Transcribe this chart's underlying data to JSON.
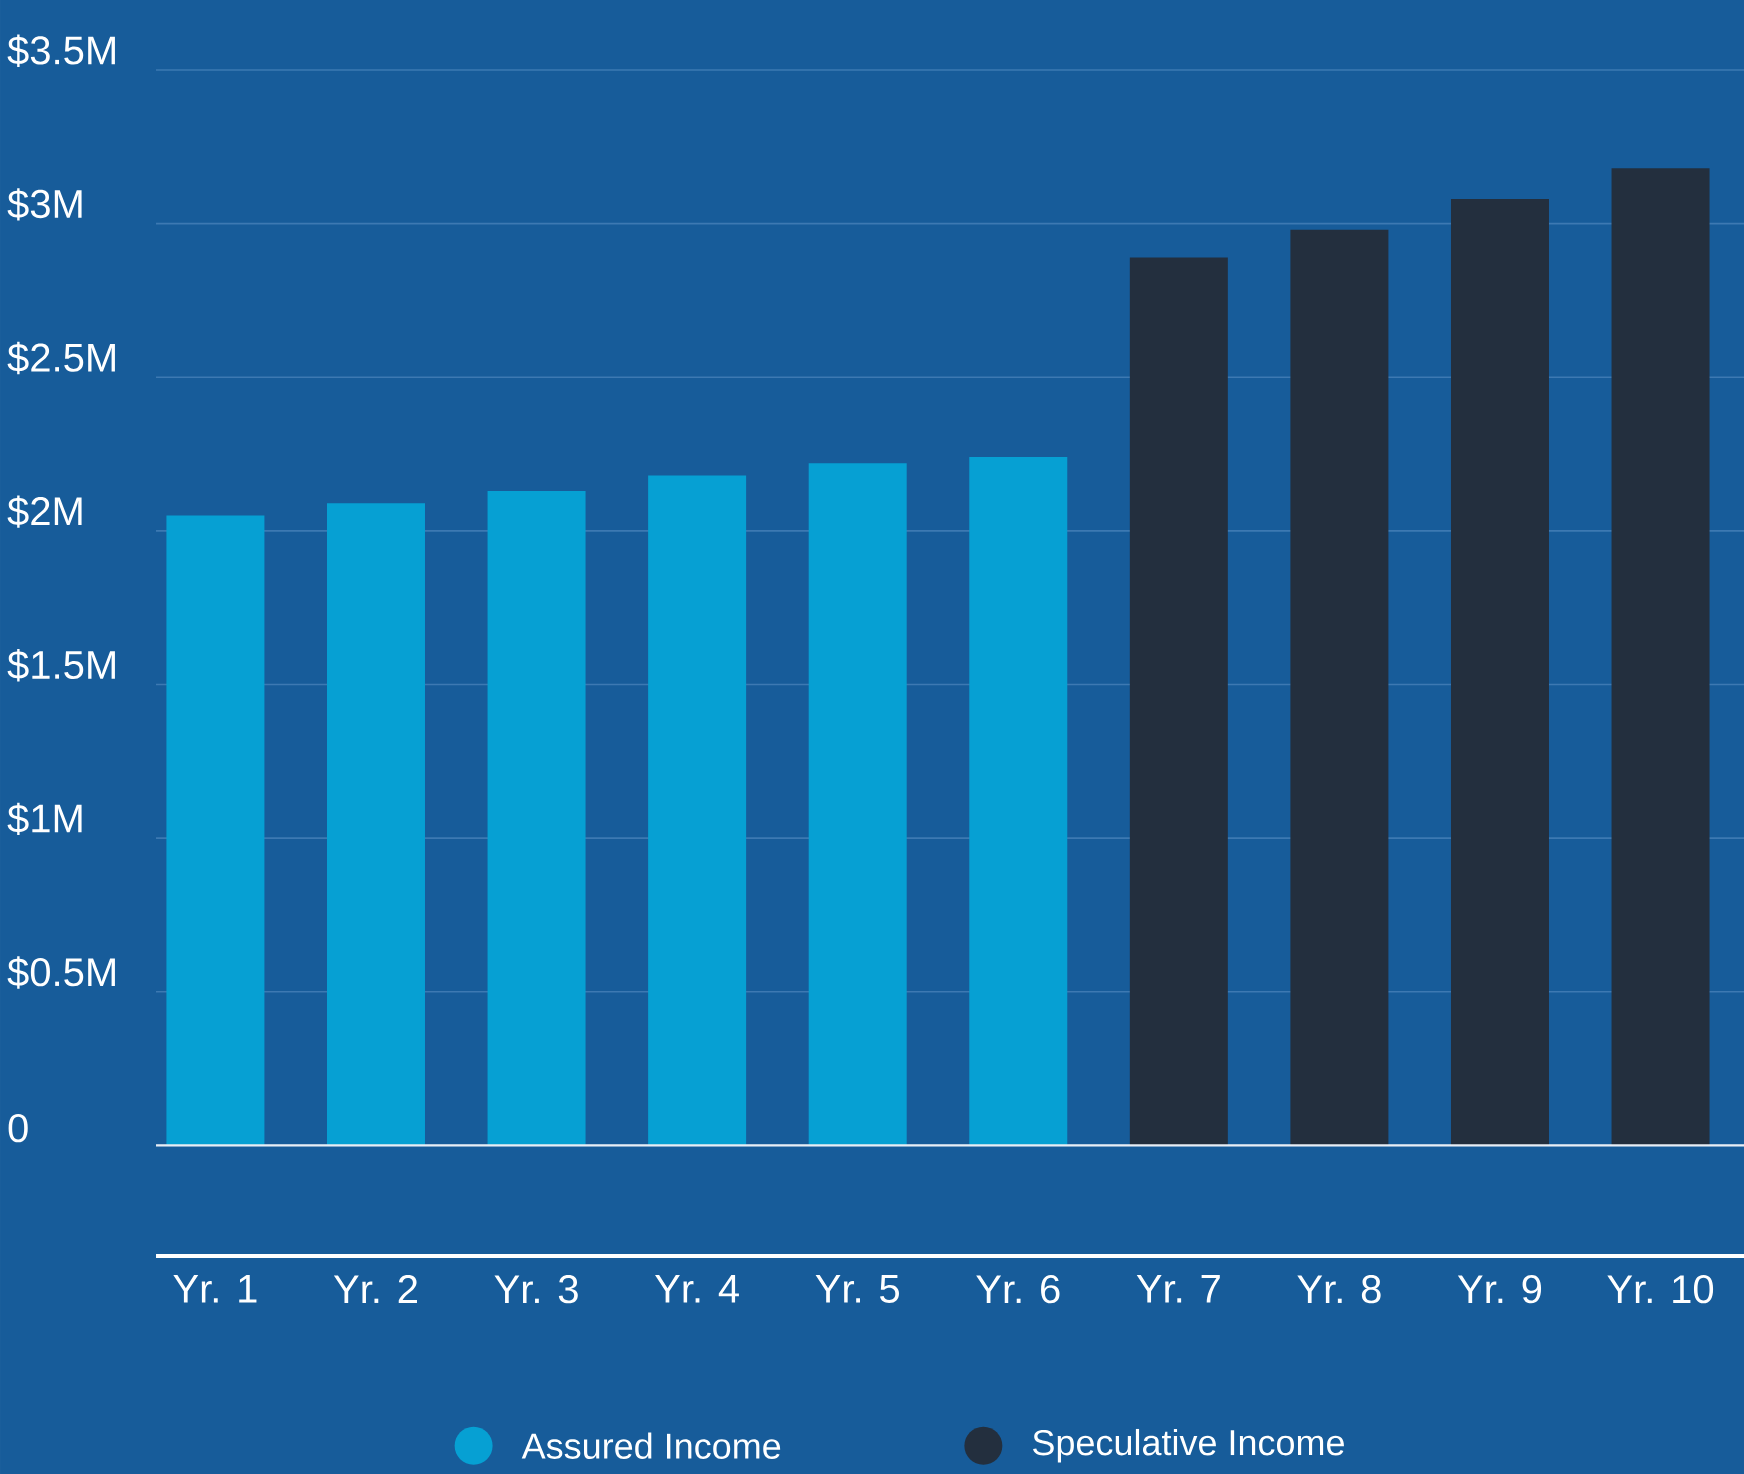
{
  "chart_data": {
    "type": "bar",
    "categories": [
      "Yr. 1",
      "Yr. 2",
      "Yr. 3",
      "Yr. 4",
      "Yr. 5",
      "Yr. 6",
      "Yr. 7",
      "Yr. 8",
      "Yr. 9",
      "Yr. 10"
    ],
    "series": [
      {
        "name": "Assured Income",
        "color": "#06a0d3",
        "values": [
          2.05,
          2.09,
          2.13,
          2.18,
          2.22,
          2.24,
          null,
          null,
          null,
          null
        ]
      },
      {
        "name": "Speculative Income",
        "color": "#232f3e",
        "values": [
          null,
          null,
          null,
          null,
          null,
          null,
          2.89,
          2.98,
          3.08,
          3.18
        ]
      }
    ],
    "ylim": [
      -0.36,
      3.5
    ],
    "yticks": [
      {
        "value": 0,
        "label": "0"
      },
      {
        "value": 0.5,
        "label": "$0.5M"
      },
      {
        "value": 1,
        "label": "$1M"
      },
      {
        "value": 1.5,
        "label": "$1.5M"
      },
      {
        "value": 2,
        "label": "$2M"
      },
      {
        "value": 2.5,
        "label": "$2.5M"
      },
      {
        "value": 3,
        "label": "$3M"
      },
      {
        "value": 3.5,
        "label": "$3.5M"
      }
    ],
    "ref_lines": [
      {
        "axis": "y",
        "value": 0,
        "color": "#e8eef5"
      }
    ],
    "grid": "y",
    "legend": "bottom"
  }
}
